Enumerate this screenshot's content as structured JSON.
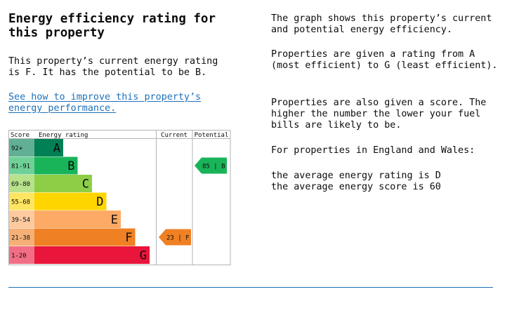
{
  "heading": "Energy efficiency rating for this property",
  "current_rating_text": "This property’s current energy rating is F. It has the potential to be B.",
  "improve_link": "See how to improve this property’s energy performance.",
  "right_column": {
    "graph_text": "The graph shows this property’s current and potential energy efficiency.",
    "ratings_text": "Properties are given a rating from A (most efficient) to G (least efficient).",
    "score_text": "Properties are also given a score. The higher the number the lower your fuel bills are likely to be.",
    "region_text": "For properties in England and Wales:",
    "average_rating": "the average energy rating is D",
    "average_score": "the average energy score is 60"
  },
  "chart_data": {
    "type": "table",
    "headers": {
      "score": "Score",
      "rating": "Energy rating",
      "current": "Current",
      "potential": "Potential"
    },
    "bands": [
      {
        "letter": "A",
        "range": "92+",
        "color": "#008054"
      },
      {
        "letter": "B",
        "range": "81-91",
        "color": "#19b459"
      },
      {
        "letter": "C",
        "range": "69-80",
        "color": "#8dce46"
      },
      {
        "letter": "D",
        "range": "55-68",
        "color": "#ffd500"
      },
      {
        "letter": "E",
        "range": "39-54",
        "color": "#fcaa65"
      },
      {
        "letter": "F",
        "range": "21-38",
        "color": "#ef8023"
      },
      {
        "letter": "G",
        "range": "1-20",
        "color": "#e9153b"
      }
    ],
    "current": {
      "score": 23,
      "band": "F",
      "label": "23 | F",
      "color": "#ef8023"
    },
    "potential": {
      "score": 85,
      "band": "B",
      "label": "85 | B",
      "color": "#19b459"
    }
  }
}
